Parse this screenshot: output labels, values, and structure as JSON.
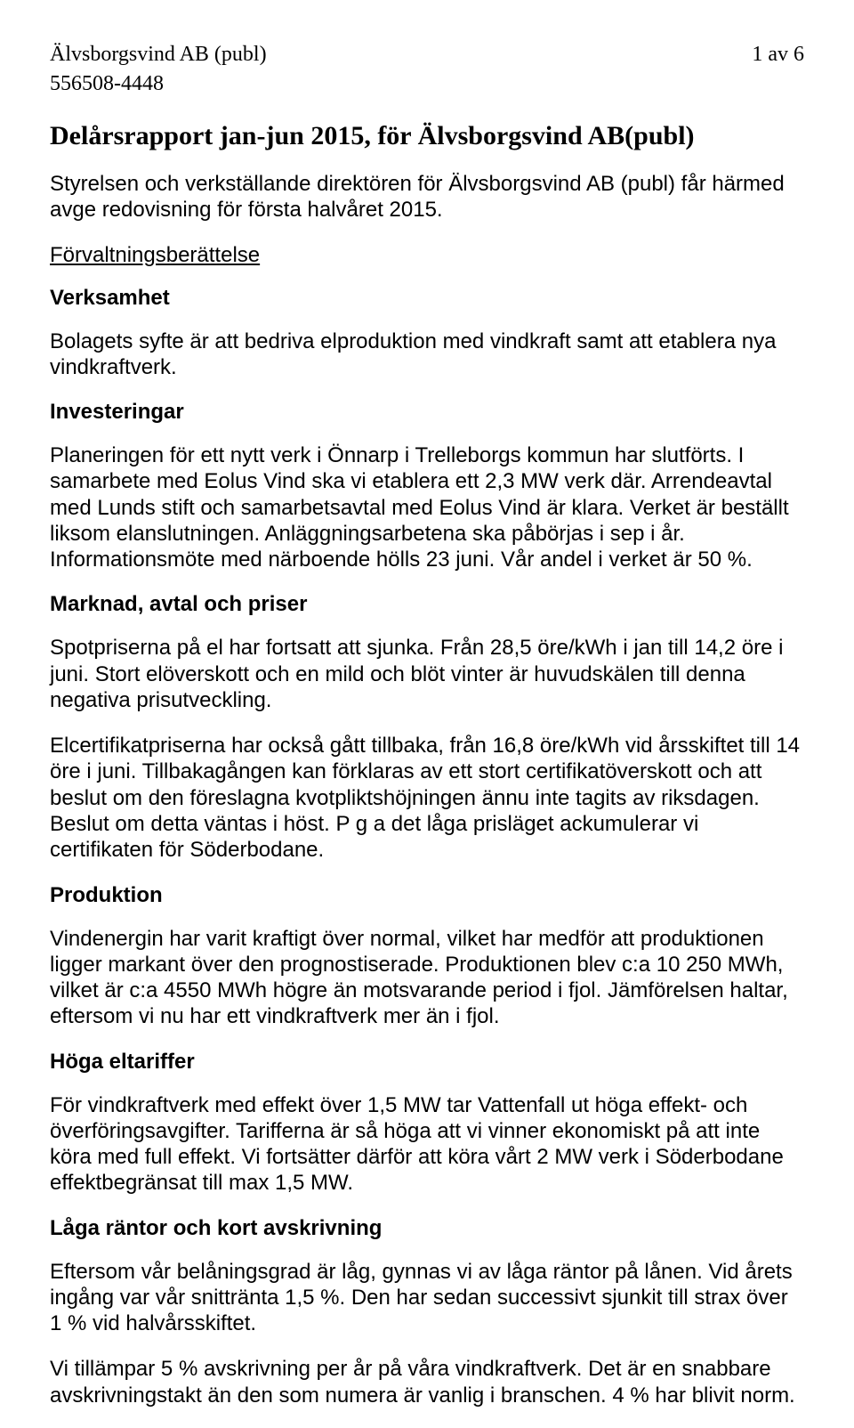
{
  "header": {
    "company": "Älvsborgsvind AB (publ)",
    "page_label": "1 av 6",
    "org_nr": "556508-4448"
  },
  "title": "Delårsrapport  jan-jun 2015, för Älvsborgsvind AB(publ)",
  "intro": "Styrelsen och verkställande direktören för Älvsborgsvind AB (publ) får härmed avge redovisning för första halvåret 2015.",
  "s1": {
    "heading": "Förvaltningsberättelse",
    "sub1": "Verksamhet",
    "p1": "Bolagets syfte är att bedriva elproduktion med vindkraft samt att etablera nya vindkraftverk.",
    "sub2": "Investeringar",
    "p2": "Planeringen för ett nytt verk i Önnarp i Trelleborgs kommun har slutförts. I samarbete med Eolus Vind ska vi etablera ett 2,3 MW verk där. Arrendeavtal med Lunds stift och samarbetsavtal med Eolus Vind är klara. Verket är beställt liksom elanslutningen. Anläggningsarbetena ska påbörjas i sep i år. Informationsmöte med närboende hölls 23 juni. Vår andel i verket är 50 %.",
    "sub3": "Marknad, avtal och priser",
    "p3": "Spotpriserna på el har fortsatt att sjunka. Från 28,5 öre/kWh i jan till 14,2 öre i juni. Stort elöverskott och en mild och blöt vinter är huvudskälen till denna negativa prisutveckling.",
    "p4": "Elcertifikatpriserna har också gått tillbaka, från 16,8 öre/kWh vid årsskiftet till 14 öre i juni. Tillbakagången kan förklaras av ett stort certifikatöverskott och att beslut om den föreslagna kvotpliktshöjningen ännu inte tagits av riksdagen. Beslut om detta väntas i höst. P g a det låga prisläget ackumulerar vi certifikaten för Söderbodane.",
    "sub4": "Produktion",
    "p5": "Vindenergin har varit kraftigt över normal, vilket har medför att produktionen ligger markant över den prognostiserade. Produktionen blev c:a 10 250 MWh, vilket är c:a 4550 MWh högre än motsvarande period i fjol. Jämförelsen haltar, eftersom vi nu har ett vindkraftverk mer än i fjol.",
    "sub5": "Höga eltariffer",
    "p6": "För vindkraftverk med effekt över 1,5 MW tar Vattenfall ut höga effekt- och överföringsavgifter. Tarifferna är så höga att vi vinner ekonomiskt på att inte köra med full effekt. Vi fortsätter därför att köra vårt 2 MW verk i Söderbodane effektbegränsat till max 1,5 MW.",
    "sub6": "Låga räntor och kort avskrivning",
    "p7": "Eftersom vår belåningsgrad är låg, gynnas vi av låga räntor på lånen. Vid årets ingång var vår snittränta 1,5 %. Den har sedan successivt sjunkit till strax över 1 % vid halvårsskiftet.",
    "p8": "Vi tillämpar 5 % avskrivning per år på våra vindkraftverk. Det är en snabbare avskrivningstakt än den som numera är vanlig i branschen. 4 % har blivit norm."
  }
}
